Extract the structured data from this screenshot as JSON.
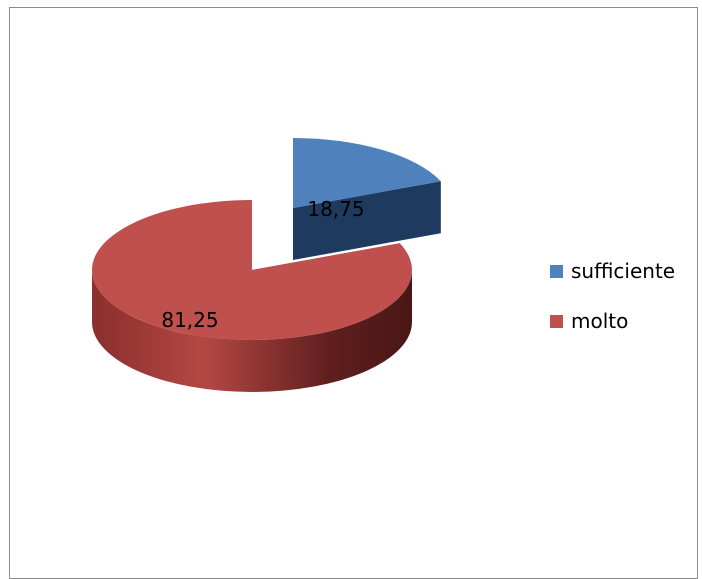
{
  "chart_data": {
    "type": "pie",
    "style": "3d-exploded",
    "title": "",
    "slices": [
      {
        "label": "sufficiente",
        "value": 18.75,
        "display": "18,75",
        "color": "#4f81bd"
      },
      {
        "label": "molto",
        "value": 81.25,
        "display": "81,25",
        "color": "#c0504d"
      }
    ],
    "legend_position": "right"
  },
  "legend": {
    "items": [
      {
        "label": "sufficiente",
        "color": "#4f81bd"
      },
      {
        "label": "molto",
        "color": "#c0504d"
      }
    ]
  }
}
